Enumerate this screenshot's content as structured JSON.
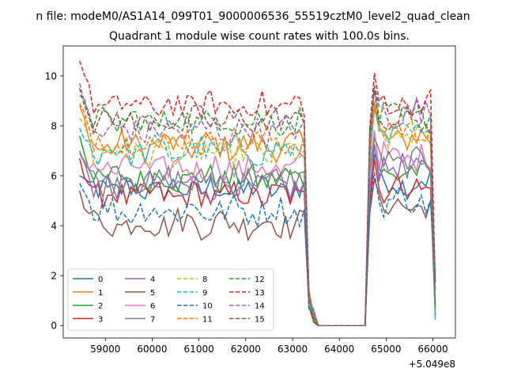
{
  "chart_data": {
    "type": "line",
    "suptitle": "n file: modeM0/AS1A14_099T01_9000006536_55519cztM0_level2_quad_clean",
    "title": "Quadrant 1 module wise count rates with 100.0s bins.",
    "xlabel": "",
    "ylabel": "",
    "x_offset_label": "+5.049e8",
    "xlim": [
      58100,
      66480
    ],
    "ylim": [
      -0.5,
      11.2
    ],
    "x_ticks": [
      59000,
      60000,
      61000,
      62000,
      63000,
      64000,
      65000,
      66000
    ],
    "x_tick_labels": [
      "59000",
      "60000",
      "61000",
      "62000",
      "63000",
      "64000",
      "65000",
      "66000"
    ],
    "y_ticks": [
      0,
      2,
      4,
      6,
      8,
      10
    ],
    "y_tick_labels": [
      "0",
      "2",
      "4",
      "6",
      "8",
      "10"
    ],
    "x_start": 58450,
    "bin_width": 100,
    "n_bins": 77,
    "segments": [
      {
        "start_bin": 0,
        "end_bin": 48,
        "state": "on"
      },
      {
        "start_bin": 49,
        "end_bin": 49,
        "state": "drop"
      },
      {
        "start_bin": 50,
        "end_bin": 50,
        "state": "near_zero"
      },
      {
        "start_bin": 51,
        "end_bin": 61,
        "state": "zero"
      },
      {
        "start_bin": 62,
        "end_bin": 75,
        "state": "on"
      },
      {
        "start_bin": 76,
        "end_bin": 76,
        "state": "fall"
      }
    ],
    "legend": {
      "location": "lower-left",
      "columns": 4
    },
    "series": [
      {
        "name": "0",
        "color": "#1f77b4",
        "dash": "solid",
        "level": 5.45,
        "second_level": 5.75,
        "start_value": 6.0
      },
      {
        "name": "1",
        "color": "#ff7f0e",
        "dash": "solid",
        "level": 7.2,
        "second_level": 7.5,
        "start_value": 8.8
      },
      {
        "name": "2",
        "color": "#2ca02c",
        "dash": "solid",
        "level": 5.9,
        "second_level": 6.1,
        "start_value": 7.6
      },
      {
        "name": "3",
        "color": "#d62728",
        "dash": "solid",
        "level": 5.2,
        "second_level": 5.55,
        "start_value": 6.7
      },
      {
        "name": "4",
        "color": "#9467bd",
        "dash": "solid",
        "level": 5.6,
        "second_level": 6.3,
        "start_value": 6.9
      },
      {
        "name": "5",
        "color": "#8c564b",
        "dash": "solid",
        "level": 4.1,
        "second_level": 4.8,
        "start_value": 5.4
      },
      {
        "name": "6",
        "color": "#e377c2",
        "dash": "solid",
        "level": 6.3,
        "second_level": 6.7,
        "start_value": 6.9
      },
      {
        "name": "7",
        "color": "#7f7f7f",
        "dash": "solid",
        "level": 5.8,
        "second_level": 6.5,
        "start_value": 7.0
      },
      {
        "name": "8",
        "color": "#bcbd22",
        "dash": "dashed",
        "level": 6.9,
        "second_level": 7.6,
        "start_value": 8.3
      },
      {
        "name": "9",
        "color": "#17becf",
        "dash": "dashed",
        "level": 7.0,
        "second_level": 7.6,
        "start_value": 7.9
      },
      {
        "name": "10",
        "color": "#1f77b4",
        "dash": "dashed",
        "level": 4.6,
        "second_level": 5.0,
        "start_value": 5.7
      },
      {
        "name": "11",
        "color": "#ff7f0e",
        "dash": "dashed",
        "level": 7.4,
        "second_level": 7.9,
        "start_value": 8.9
      },
      {
        "name": "12",
        "color": "#2ca02c",
        "dash": "dashed",
        "level": 8.2,
        "second_level": 8.3,
        "start_value": 9.2
      },
      {
        "name": "13",
        "color": "#d62728",
        "dash": "dashed",
        "level": 8.8,
        "second_level": 8.9,
        "start_value": 10.6
      },
      {
        "name": "14",
        "color": "#9467bd",
        "dash": "dashed",
        "level": 7.8,
        "second_level": 8.5,
        "start_value": 9.7
      },
      {
        "name": "15",
        "color": "#8c564b",
        "dash": "dashed",
        "level": 8.2,
        "second_level": 8.2,
        "start_value": 9.5
      }
    ]
  }
}
